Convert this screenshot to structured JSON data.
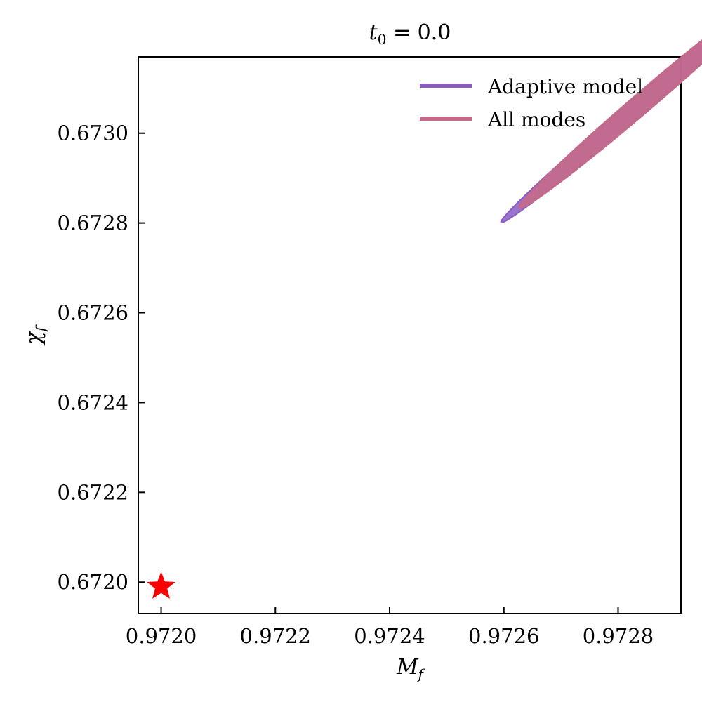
{
  "chart_data": {
    "type": "scatter",
    "title": {
      "base": "t",
      "sub": "0",
      "rest": " = 0.0"
    },
    "xlabel": {
      "base": "M",
      "sub": "f"
    },
    "ylabel": {
      "base": "χ",
      "sub": "f"
    },
    "xlim": [
      0.97196,
      0.97291
    ],
    "ylim": [
      0.67193,
      0.67317
    ],
    "xticks": [
      0.972,
      0.9722,
      0.9724,
      0.9726,
      0.9728
    ],
    "xtick_labels": [
      "0.9720",
      "0.9722",
      "0.9724",
      "0.9726",
      "0.9728"
    ],
    "yticks": [
      0.672,
      0.6722,
      0.6724,
      0.6726,
      0.6728,
      0.673
    ],
    "ytick_labels": [
      "0.6720",
      "0.6722",
      "0.6724",
      "0.6726",
      "0.6728",
      "0.6730"
    ],
    "grid": false,
    "legend_position": "top-right",
    "series": [
      {
        "name": "Adaptive model",
        "color": "#8a5cc4",
        "contour": {
          "center": [
            0.972845,
            0.673071
          ],
          "semi_major": [
            0.00025,
            0.00027
          ],
          "semi_minor": [
            1.2e-05,
            -1.2e-05
          ]
        }
      },
      {
        "name": "All modes",
        "color": "#c46a88",
        "contour": {
          "center": [
            0.972847,
            0.673073
          ],
          "semi_major": [
            0.00022,
            0.00024
          ],
          "semi_minor": [
            1.4e-05,
            -1.4e-05
          ]
        }
      }
    ],
    "truth": {
      "x": 0.972,
      "y": 0.67199,
      "marker": "star",
      "color": "#ff0000"
    }
  }
}
